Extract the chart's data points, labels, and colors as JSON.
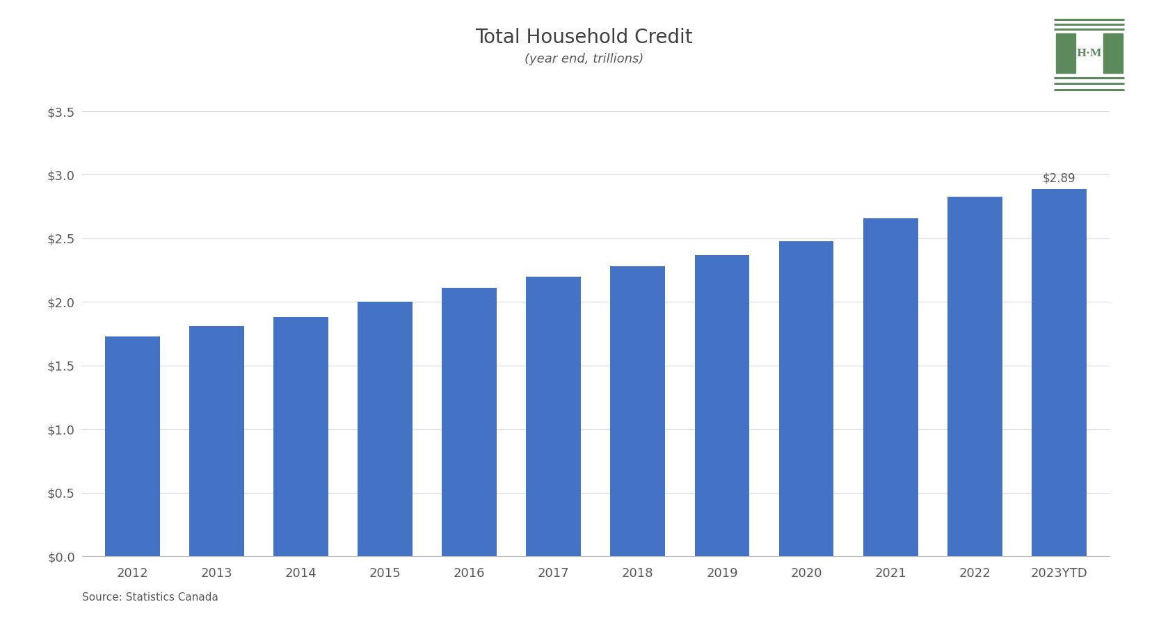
{
  "title": "Total Household Credit",
  "subtitle": "(year end, trillions)",
  "source": "Source: Statistics Canada",
  "categories": [
    "2012",
    "2013",
    "2014",
    "2015",
    "2016",
    "2017",
    "2018",
    "2019",
    "2020",
    "2021",
    "2022",
    "2023YTD"
  ],
  "values": [
    1.73,
    1.81,
    1.88,
    2.0,
    2.11,
    2.2,
    2.28,
    2.37,
    2.48,
    2.66,
    2.83,
    2.89
  ],
  "bar_color": "#4472C4",
  "annotation_value": "$2.89",
  "annotation_index": 11,
  "ylim": [
    0,
    3.5
  ],
  "yticks": [
    0.0,
    0.5,
    1.0,
    1.5,
    2.0,
    2.5,
    3.0,
    3.5
  ],
  "background_color": "#ffffff",
  "title_color": "#404040",
  "subtitle_color": "#595959",
  "tick_label_color": "#595959",
  "source_color": "#595959",
  "title_fontsize": 20,
  "subtitle_fontsize": 13,
  "source_fontsize": 11,
  "tick_fontsize": 13,
  "annotation_fontsize": 12,
  "logo_color": "#5c8a5c",
  "grid_color": "#d9d9d9"
}
